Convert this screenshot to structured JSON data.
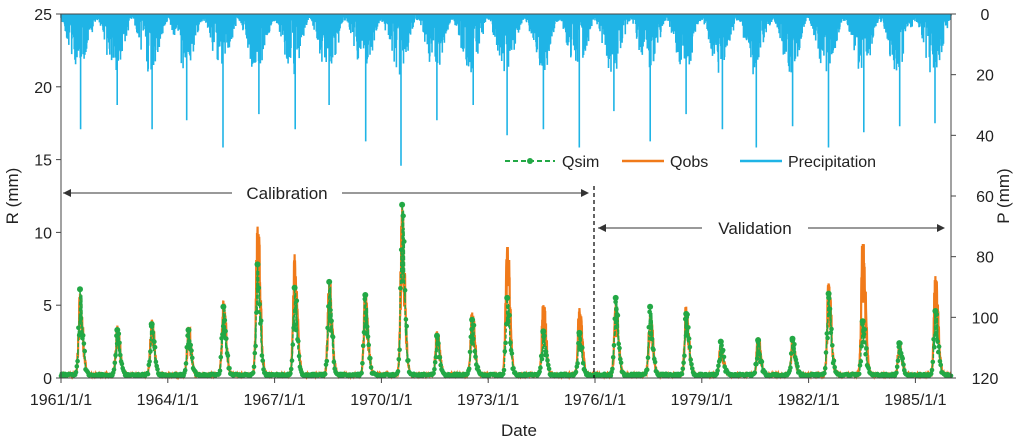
{
  "chart_data": {
    "type": "line",
    "xlabel": "Date",
    "ylabel_left": "R (mm)",
    "ylabel_right": "P (mm)",
    "x_range": [
      "1961/1/1",
      "1986/1/1"
    ],
    "x_ticks": [
      "1961/1/1",
      "1964/1/1",
      "1967/1/1",
      "1970/1/1",
      "1973/1/1",
      "1976/1/1",
      "1979/1/1",
      "1982/1/1",
      "1985/1/1"
    ],
    "y_left": {
      "min": 0,
      "max": 25,
      "ticks": [
        0,
        5,
        10,
        15,
        20,
        25
      ]
    },
    "y_right": {
      "min": 0,
      "max": 120,
      "inverted": true,
      "ticks": [
        0,
        20,
        40,
        60,
        80,
        100,
        120
      ]
    },
    "legend": {
      "placement": "center-right",
      "entries": [
        {
          "label": "Qsim",
          "color": "#22a845",
          "style": "dashed-with-markers"
        },
        {
          "label": "Qobs",
          "color": "#f07a1a",
          "style": "solid"
        },
        {
          "label": "Precipitation",
          "color": "#1fb4e6",
          "style": "solid"
        }
      ]
    },
    "periods": [
      {
        "label": "Calibration",
        "start": "1961/1/1",
        "end": "1976/1/1"
      },
      {
        "label": "Validation",
        "start": "1976/1/1",
        "end": "1985/12/31"
      }
    ],
    "series": [
      {
        "name": "Qobs",
        "color": "#f07a1a",
        "axis": "left",
        "annual_peaks": [
          {
            "date": "1961/7/15",
            "value": 5.8
          },
          {
            "date": "1962/8/1",
            "value": 3.6
          },
          {
            "date": "1963/7/20",
            "value": 4.0
          },
          {
            "date": "1964/8/1",
            "value": 3.5
          },
          {
            "date": "1965/7/25",
            "value": 5.3
          },
          {
            "date": "1966/7/10",
            "value": 10.4
          },
          {
            "date": "1967/7/25",
            "value": 8.5
          },
          {
            "date": "1968/7/15",
            "value": 6.6
          },
          {
            "date": "1969/7/20",
            "value": 5.8
          },
          {
            "date": "1970/8/1",
            "value": 11.7
          },
          {
            "date": "1971/7/25",
            "value": 3.2
          },
          {
            "date": "1972/7/20",
            "value": 4.5
          },
          {
            "date": "1973/7/15",
            "value": 9.0
          },
          {
            "date": "1974/7/20",
            "value": 5.0
          },
          {
            "date": "1975/7/25",
            "value": 4.8
          },
          {
            "date": "1976/8/1",
            "value": 5.1
          },
          {
            "date": "1977/7/20",
            "value": 4.5
          },
          {
            "date": "1978/7/25",
            "value": 4.9
          },
          {
            "date": "1979/7/15",
            "value": 2.3
          },
          {
            "date": "1980/8/1",
            "value": 2.8
          },
          {
            "date": "1981/7/20",
            "value": 2.6
          },
          {
            "date": "1982/7/25",
            "value": 6.5
          },
          {
            "date": "1983/7/10",
            "value": 9.2
          },
          {
            "date": "1984/7/20",
            "value": 2.5
          },
          {
            "date": "1985/7/25",
            "value": 7.0
          }
        ]
      },
      {
        "name": "Qsim",
        "color": "#22a845",
        "axis": "left",
        "annual_peaks": [
          {
            "date": "1961/7/15",
            "value": 6.1
          },
          {
            "date": "1962/8/1",
            "value": 3.3
          },
          {
            "date": "1963/7/20",
            "value": 3.7
          },
          {
            "date": "1964/8/1",
            "value": 3.3
          },
          {
            "date": "1965/7/25",
            "value": 4.9
          },
          {
            "date": "1966/7/10",
            "value": 7.8
          },
          {
            "date": "1967/7/25",
            "value": 6.2
          },
          {
            "date": "1968/7/15",
            "value": 6.6
          },
          {
            "date": "1969/7/20",
            "value": 5.7
          },
          {
            "date": "1970/8/1",
            "value": 11.9
          },
          {
            "date": "1971/7/25",
            "value": 2.9
          },
          {
            "date": "1972/7/20",
            "value": 4.0
          },
          {
            "date": "1973/7/15",
            "value": 5.5
          },
          {
            "date": "1974/7/20",
            "value": 3.2
          },
          {
            "date": "1975/7/25",
            "value": 3.1
          },
          {
            "date": "1976/8/1",
            "value": 5.5
          },
          {
            "date": "1977/7/20",
            "value": 4.9
          },
          {
            "date": "1978/7/25",
            "value": 4.4
          },
          {
            "date": "1979/7/15",
            "value": 2.5
          },
          {
            "date": "1980/8/1",
            "value": 2.6
          },
          {
            "date": "1981/7/20",
            "value": 2.7
          },
          {
            "date": "1982/7/25",
            "value": 5.8
          },
          {
            "date": "1983/7/10",
            "value": 3.9
          },
          {
            "date": "1984/7/20",
            "value": 2.4
          },
          {
            "date": "1985/7/25",
            "value": 4.6
          }
        ]
      },
      {
        "name": "Precipitation",
        "color": "#1fb4e6",
        "axis": "right",
        "annual_max": [
          {
            "date": "1961/7/20",
            "value": 38
          },
          {
            "date": "1962/8/1",
            "value": 30
          },
          {
            "date": "1963/7/25",
            "value": 38
          },
          {
            "date": "1964/7/15",
            "value": 35
          },
          {
            "date": "1965/7/20",
            "value": 44
          },
          {
            "date": "1966/7/25",
            "value": 33
          },
          {
            "date": "1967/8/1",
            "value": 38
          },
          {
            "date": "1968/7/15",
            "value": 30
          },
          {
            "date": "1969/7/25",
            "value": 42
          },
          {
            "date": "1970/7/20",
            "value": 50
          },
          {
            "date": "1971/7/25",
            "value": 35
          },
          {
            "date": "1972/8/1",
            "value": 30
          },
          {
            "date": "1973/7/15",
            "value": 40
          },
          {
            "date": "1974/7/20",
            "value": 38
          },
          {
            "date": "1975/7/25",
            "value": 44
          },
          {
            "date": "1976/7/15",
            "value": 32
          },
          {
            "date": "1977/7/20",
            "value": 42
          },
          {
            "date": "1978/7/25",
            "value": 33
          },
          {
            "date": "1979/8/1",
            "value": 38
          },
          {
            "date": "1980/7/15",
            "value": 44
          },
          {
            "date": "1981/7/20",
            "value": 37
          },
          {
            "date": "1982/7/25",
            "value": 44
          },
          {
            "date": "1983/7/20",
            "value": 39
          },
          {
            "date": "1984/7/25",
            "value": 37
          },
          {
            "date": "1985/7/20",
            "value": 36
          }
        ]
      }
    ]
  }
}
